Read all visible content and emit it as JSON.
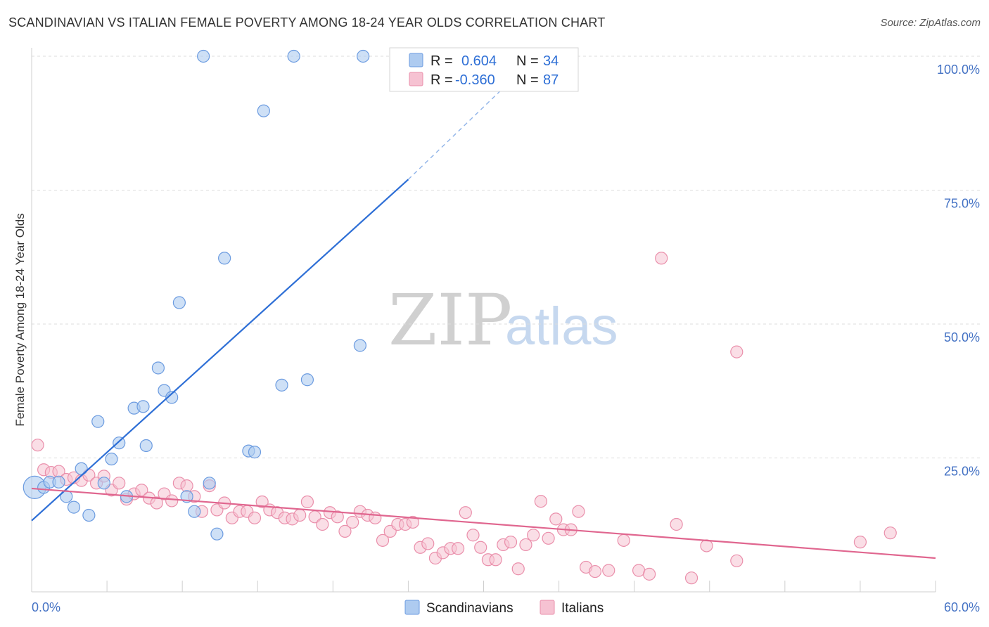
{
  "header": {
    "title": "SCANDINAVIAN VS ITALIAN FEMALE POVERTY AMONG 18-24 YEAR OLDS CORRELATION CHART",
    "source": "Source: ZipAtlas.com"
  },
  "watermark": {
    "zip": "ZIP",
    "atlas": "atlas"
  },
  "legend": {
    "rows": [
      {
        "r_label": "R =",
        "r_value": "0.604",
        "n_label": "N =",
        "n_value": "34",
        "color": "#aecbf0",
        "stroke": "#6b9be0"
      },
      {
        "r_label": "R =",
        "r_value": "-0.360",
        "n_label": "N =",
        "n_value": "87",
        "color": "#f6c2d2",
        "stroke": "#ea8fab"
      }
    ]
  },
  "bottom_legend": [
    {
      "label": "Scandinavians",
      "color": "#aecbf0",
      "stroke": "#6b9be0"
    },
    {
      "label": "Italians",
      "color": "#f6c2d2",
      "stroke": "#ea8fab"
    }
  ],
  "chart_data": {
    "type": "scatter",
    "title": "SCANDINAVIAN VS ITALIAN FEMALE POVERTY AMONG 18-24 YEAR OLDS CORRELATION CHART",
    "xlabel": "",
    "ylabel": "Female Poverty Among 18-24 Year Olds",
    "xlim": [
      0,
      60
    ],
    "ylim": [
      0,
      100
    ],
    "x_tick_labels": [
      "0.0%",
      "60.0%"
    ],
    "y_ticks": [
      25,
      50,
      75,
      100
    ],
    "y_tick_labels": [
      "25.0%",
      "50.0%",
      "75.0%",
      "100.0%"
    ],
    "grid": "horizontal dashed",
    "legend_position": "top-center",
    "series": [
      {
        "name": "Scandinavians",
        "color": "#6b9be0",
        "fill": "#aecbf0",
        "points": [
          [
            0.2,
            19.5
          ],
          [
            0.8,
            19.5
          ],
          [
            1.2,
            20.5
          ],
          [
            1.8,
            20.5
          ],
          [
            2.3,
            17.8
          ],
          [
            2.8,
            15.8
          ],
          [
            3.3,
            23.0
          ],
          [
            3.8,
            14.3
          ],
          [
            4.4,
            31.8
          ],
          [
            4.8,
            20.3
          ],
          [
            5.3,
            24.8
          ],
          [
            5.8,
            27.8
          ],
          [
            6.3,
            17.8
          ],
          [
            6.8,
            34.3
          ],
          [
            7.4,
            34.6
          ],
          [
            7.6,
            27.3
          ],
          [
            8.4,
            41.8
          ],
          [
            8.8,
            37.6
          ],
          [
            9.3,
            36.3
          ],
          [
            9.8,
            54.0
          ],
          [
            10.3,
            17.8
          ],
          [
            10.8,
            15.0
          ],
          [
            11.4,
            100.0
          ],
          [
            11.8,
            20.3
          ],
          [
            12.3,
            10.8
          ],
          [
            12.8,
            62.3
          ],
          [
            14.4,
            26.3
          ],
          [
            14.8,
            26.1
          ],
          [
            15.4,
            89.8
          ],
          [
            16.6,
            38.6
          ],
          [
            17.4,
            100.0
          ],
          [
            18.3,
            39.6
          ],
          [
            21.8,
            46.0
          ],
          [
            22.0,
            100.0
          ]
        ],
        "trend": {
          "x0": 0,
          "y0": 13.3,
          "x1": 25,
          "y1": 77.0,
          "dash_to_x": 33.5,
          "dash_to_y": 100.0
        }
      },
      {
        "name": "Italians",
        "color": "#ea8fab",
        "fill": "#f6c2d2",
        "points": [
          [
            0.4,
            27.4
          ],
          [
            0.8,
            22.8
          ],
          [
            1.3,
            22.3
          ],
          [
            1.8,
            22.5
          ],
          [
            2.3,
            21.0
          ],
          [
            2.8,
            21.3
          ],
          [
            3.3,
            20.8
          ],
          [
            3.8,
            21.8
          ],
          [
            4.3,
            20.3
          ],
          [
            4.8,
            21.6
          ],
          [
            5.3,
            19.0
          ],
          [
            5.8,
            20.3
          ],
          [
            6.3,
            17.3
          ],
          [
            6.8,
            18.3
          ],
          [
            7.3,
            19.0
          ],
          [
            7.8,
            17.5
          ],
          [
            8.3,
            16.6
          ],
          [
            8.8,
            18.3
          ],
          [
            9.3,
            17.0
          ],
          [
            9.8,
            20.3
          ],
          [
            10.3,
            19.8
          ],
          [
            10.8,
            17.8
          ],
          [
            11.3,
            15.0
          ],
          [
            11.8,
            19.8
          ],
          [
            12.3,
            15.3
          ],
          [
            12.8,
            16.6
          ],
          [
            13.3,
            13.8
          ],
          [
            13.8,
            15.0
          ],
          [
            14.3,
            15.0
          ],
          [
            14.8,
            13.8
          ],
          [
            15.3,
            16.8
          ],
          [
            15.8,
            15.3
          ],
          [
            16.3,
            14.8
          ],
          [
            16.8,
            13.8
          ],
          [
            17.3,
            13.6
          ],
          [
            17.8,
            14.3
          ],
          [
            18.3,
            16.8
          ],
          [
            18.8,
            14.0
          ],
          [
            19.3,
            12.6
          ],
          [
            19.8,
            14.8
          ],
          [
            20.3,
            14.0
          ],
          [
            20.8,
            11.3
          ],
          [
            21.3,
            13.0
          ],
          [
            21.8,
            15.0
          ],
          [
            22.3,
            14.3
          ],
          [
            22.8,
            13.8
          ],
          [
            23.3,
            9.6
          ],
          [
            23.8,
            11.3
          ],
          [
            24.3,
            12.6
          ],
          [
            24.8,
            12.6
          ],
          [
            25.3,
            13.0
          ],
          [
            25.8,
            8.3
          ],
          [
            26.3,
            9.0
          ],
          [
            26.8,
            6.3
          ],
          [
            27.3,
            7.3
          ],
          [
            27.8,
            8.1
          ],
          [
            28.3,
            8.1
          ],
          [
            28.8,
            14.8
          ],
          [
            29.3,
            10.6
          ],
          [
            29.8,
            8.3
          ],
          [
            30.3,
            6.0
          ],
          [
            30.8,
            6.0
          ],
          [
            31.3,
            8.8
          ],
          [
            31.8,
            9.3
          ],
          [
            32.3,
            4.3
          ],
          [
            32.8,
            8.8
          ],
          [
            33.3,
            10.6
          ],
          [
            33.8,
            16.9
          ],
          [
            34.3,
            10.0
          ],
          [
            34.8,
            13.6
          ],
          [
            35.3,
            11.6
          ],
          [
            35.8,
            11.6
          ],
          [
            36.3,
            15.0
          ],
          [
            36.8,
            4.6
          ],
          [
            37.4,
            3.8
          ],
          [
            38.3,
            4.0
          ],
          [
            39.3,
            9.6
          ],
          [
            40.3,
            4.0
          ],
          [
            41.0,
            3.3
          ],
          [
            41.8,
            62.3
          ],
          [
            42.8,
            12.6
          ],
          [
            43.8,
            2.6
          ],
          [
            44.8,
            8.6
          ],
          [
            46.8,
            5.8
          ],
          [
            46.8,
            44.8
          ],
          [
            55.0,
            9.3
          ],
          [
            57.0,
            11.0
          ]
        ],
        "trend": {
          "x0": 0,
          "y0": 19.3,
          "x1": 60,
          "y1": 6.3
        }
      }
    ]
  }
}
